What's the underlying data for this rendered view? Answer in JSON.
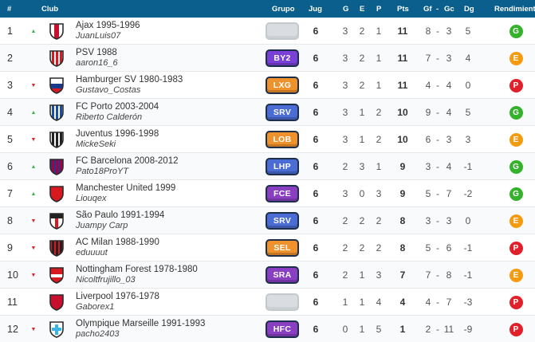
{
  "header": {
    "pos": "#",
    "club": "Club",
    "grupo": "Grupo",
    "jug": "Jug",
    "g": "G",
    "e": "E",
    "p": "P",
    "pts": "Pts",
    "gf": "Gf",
    "dash": "-",
    "gc": "Gc",
    "dg": "Dg",
    "rendimiento": "Rendimiento"
  },
  "colors": {
    "header_bg": "#0b5f8c",
    "G": "#35b22c",
    "E": "#f39c12",
    "P": "#e0202a",
    "trend_up": "#3cb44b",
    "trend_down": "#e0202a",
    "badge_blue": "#4a6cd4",
    "badge_orange": "#f0922b",
    "badge_purple": "#8a3fc2"
  },
  "rows": [
    {
      "pos": "1",
      "trend": "up",
      "trend_icon": "▲",
      "crest": "ajax-crest-icon",
      "team": "Ajax 1995-1996",
      "user": "JuanLuis07",
      "group": "",
      "group_color": "",
      "jug": "6",
      "g": "3",
      "e": "2",
      "p": "1",
      "pts": "11",
      "gf": "8",
      "gc": "3",
      "dg": "5",
      "rend": "G"
    },
    {
      "pos": "2",
      "trend": "none",
      "trend_icon": "",
      "crest": "psv-crest-icon",
      "team": "PSV 1988",
      "user": "aaron16_6",
      "group": "BY2",
      "group_color": "#7a3fd6",
      "jug": "6",
      "g": "3",
      "e": "2",
      "p": "1",
      "pts": "11",
      "gf": "7",
      "gc": "3",
      "dg": "4",
      "rend": "E"
    },
    {
      "pos": "3",
      "trend": "down",
      "trend_icon": "▼",
      "crest": "hamburger-crest-icon",
      "team": "Hamburger SV 1980-1983",
      "user": "Gustavo_Costas",
      "group": "LXG",
      "group_color": "#f0922b",
      "jug": "6",
      "g": "3",
      "e": "2",
      "p": "1",
      "pts": "11",
      "gf": "4",
      "gc": "4",
      "dg": "0",
      "rend": "P"
    },
    {
      "pos": "4",
      "trend": "up",
      "trend_icon": "▲",
      "crest": "porto-crest-icon",
      "team": "FC Porto 2003-2004",
      "user": "Riberto Calderón",
      "group": "SRV",
      "group_color": "#4a6cd4",
      "jug": "6",
      "g": "3",
      "e": "1",
      "p": "2",
      "pts": "10",
      "gf": "9",
      "gc": "4",
      "dg": "5",
      "rend": "G"
    },
    {
      "pos": "5",
      "trend": "down",
      "trend_icon": "▼",
      "crest": "juventus-crest-icon",
      "team": "Juventus 1996-1998",
      "user": "MickeSeki",
      "group": "LOB",
      "group_color": "#f0922b",
      "jug": "6",
      "g": "3",
      "e": "1",
      "p": "2",
      "pts": "10",
      "gf": "6",
      "gc": "3",
      "dg": "3",
      "rend": "E"
    },
    {
      "pos": "6",
      "trend": "up",
      "trend_icon": "▲",
      "crest": "barcelona-crest-icon",
      "team": "FC Barcelona 2008-2012",
      "user": "Pato18ProYT",
      "group": "LHP",
      "group_color": "#4a6cd4",
      "jug": "6",
      "g": "2",
      "e": "3",
      "p": "1",
      "pts": "9",
      "gf": "3",
      "gc": "4",
      "dg": "-1",
      "rend": "G"
    },
    {
      "pos": "7",
      "trend": "up",
      "trend_icon": "▲",
      "crest": "manchester-united-crest-icon",
      "team": "Manchester United 1999",
      "user": "Liouqex",
      "group": "FCE",
      "group_color": "#8a3fc2",
      "jug": "6",
      "g": "3",
      "e": "0",
      "p": "3",
      "pts": "9",
      "gf": "5",
      "gc": "7",
      "dg": "-2",
      "rend": "G"
    },
    {
      "pos": "8",
      "trend": "down",
      "trend_icon": "▼",
      "crest": "sao-paulo-crest-icon",
      "team": "São Paulo 1991-1994",
      "user": "Juampy Carp",
      "group": "SRV",
      "group_color": "#4a6cd4",
      "jug": "6",
      "g": "2",
      "e": "2",
      "p": "2",
      "pts": "8",
      "gf": "3",
      "gc": "3",
      "dg": "0",
      "rend": "E"
    },
    {
      "pos": "9",
      "trend": "down",
      "trend_icon": "▼",
      "crest": "ac-milan-crest-icon",
      "team": "AC Milan 1988-1990",
      "user": "eduuuut",
      "group": "SEL",
      "group_color": "#f0922b",
      "jug": "6",
      "g": "2",
      "e": "2",
      "p": "2",
      "pts": "8",
      "gf": "5",
      "gc": "6",
      "dg": "-1",
      "rend": "P"
    },
    {
      "pos": "10",
      "trend": "down",
      "trend_icon": "▼",
      "crest": "nottingham-forest-crest-icon",
      "team": "Nottingham Forest 1978-1980",
      "user": "Nicoltfrujillo_03",
      "group": "SRA",
      "group_color": "#8a3fc2",
      "jug": "6",
      "g": "2",
      "e": "1",
      "p": "3",
      "pts": "7",
      "gf": "7",
      "gc": "8",
      "dg": "-1",
      "rend": "E"
    },
    {
      "pos": "11",
      "trend": "none",
      "trend_icon": "",
      "crest": "liverpool-crest-icon",
      "team": "Liverpool 1976-1978",
      "user": "Gaborex1",
      "group": "",
      "group_color": "",
      "jug": "6",
      "g": "1",
      "e": "1",
      "p": "4",
      "pts": "4",
      "gf": "4",
      "gc": "7",
      "dg": "-3",
      "rend": "P"
    },
    {
      "pos": "12",
      "trend": "down",
      "trend_icon": "▼",
      "crest": "marseille-crest-icon",
      "team": "Olympique Marseille 1991-1993",
      "user": "pacho2403",
      "group": "HFC",
      "group_color": "#8a3fc2",
      "jug": "6",
      "g": "0",
      "e": "1",
      "p": "5",
      "pts": "1",
      "gf": "2",
      "gc": "11",
      "dg": "-9",
      "rend": "P"
    }
  ]
}
